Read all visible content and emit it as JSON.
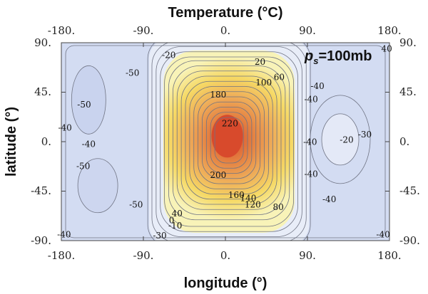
{
  "chart_data": {
    "type": "heatmap",
    "title": "Temperature (°C)",
    "xlabel": "longitude (°)",
    "ylabel": "latitude (°)",
    "xlim": [
      -180,
      180
    ],
    "ylim": [
      -90,
      90
    ],
    "xticks": [
      "-180.",
      "-90.",
      "0.",
      "90.",
      "180."
    ],
    "yticks": [
      "90.",
      "45.",
      "0.",
      "-45.",
      "-90."
    ],
    "annotation": "p_s=100mb",
    "colors": {
      "cold": "#d3dcf2",
      "cool": "#e8edf8",
      "warm_yellow": "#f5ef63",
      "hot_orange": "#eea35a",
      "hottest": "#d84a2c",
      "contour": "#707484"
    },
    "contour_levels": [
      -50,
      -40,
      -30,
      -20,
      -10,
      0,
      20,
      40,
      60,
      80,
      100,
      120,
      140,
      160,
      180,
      200,
      220
    ],
    "contour_labels": [
      {
        "text": "-20",
        "lon": -62,
        "lat": 76
      },
      {
        "text": "20",
        "lon": 38,
        "lat": 70
      },
      {
        "text": "60",
        "lon": 59,
        "lat": 56
      },
      {
        "text": "100",
        "lon": 42,
        "lat": 51
      },
      {
        "text": "40",
        "lon": 177,
        "lat": 82
      },
      {
        "text": "-50",
        "lon": -102,
        "lat": 60
      },
      {
        "text": "180",
        "lon": -8,
        "lat": 40
      },
      {
        "text": "-40",
        "lon": 101,
        "lat": 48
      },
      {
        "text": "-40",
        "lon": 94,
        "lat": 36
      },
      {
        "text": "-50",
        "lon": -155,
        "lat": 31
      },
      {
        "text": "220",
        "lon": 5,
        "lat": 14
      },
      {
        "text": "-40",
        "lon": -176,
        "lat": 10
      },
      {
        "text": "-40",
        "lon": -150,
        "lat": -5
      },
      {
        "text": "-40",
        "lon": 93,
        "lat": -3
      },
      {
        "text": "-20",
        "lon": 133,
        "lat": -1
      },
      {
        "text": "-30",
        "lon": 153,
        "lat": 4
      },
      {
        "text": "-40",
        "lon": 94,
        "lat": -32
      },
      {
        "text": "-50",
        "lon": -156,
        "lat": -25
      },
      {
        "text": "200",
        "lon": -8,
        "lat": -33
      },
      {
        "text": "160",
        "lon": 12,
        "lat": -51
      },
      {
        "text": "140",
        "lon": 25,
        "lat": -54
      },
      {
        "text": "120",
        "lon": 30,
        "lat": -60
      },
      {
        "text": "80",
        "lon": 58,
        "lat": -62
      },
      {
        "text": "-40",
        "lon": 114,
        "lat": -55
      },
      {
        "text": "-50",
        "lon": -98,
        "lat": -60
      },
      {
        "text": "40",
        "lon": -53,
        "lat": -68
      },
      {
        "text": "0",
        "lon": -59,
        "lat": -74
      },
      {
        "text": "-10",
        "lon": -55,
        "lat": -79
      },
      {
        "text": "-30",
        "lon": -72,
        "lat": -88
      },
      {
        "text": "-40",
        "lon": -177,
        "lat": -87
      },
      {
        "text": "-40",
        "lon": 173,
        "lat": -87
      }
    ],
    "grid": false
  }
}
